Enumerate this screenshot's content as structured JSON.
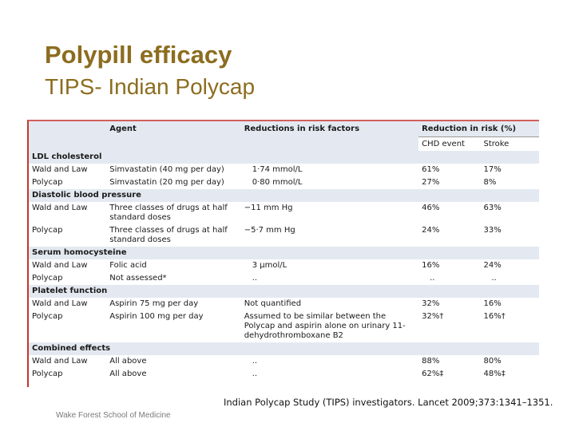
{
  "slide": {
    "title": "Polypill efficacy",
    "subtitle": "TIPS- Indian Polycap",
    "citation": "Indian Polycap Study (TIPS) investigators. Lancet 2009;373:1341–1351.",
    "footer": "Wake Forest School of Medicine"
  },
  "table": {
    "headers": {
      "agent": "Agent",
      "reductions_factors": "Reductions in risk factors",
      "reduction_risk": "Reduction in risk (%)",
      "chd": "CHD event",
      "stroke": "Stroke"
    },
    "sections": [
      {
        "name": "LDL cholesterol",
        "rows": [
          {
            "source": "Wald and Law",
            "agent": "Simvastatin (40 mg per day)",
            "factor": "1·74 mmol/L",
            "chd": "61%",
            "stroke": "17%"
          },
          {
            "source": "Polycap",
            "agent": "Simvastatin (20 mg per day)",
            "factor": "0·80 mmol/L",
            "chd": "27%",
            "stroke": "8%"
          }
        ]
      },
      {
        "name": "Diastolic blood pressure",
        "rows": [
          {
            "source": "Wald and Law",
            "agent": "Three classes of drugs at half standard doses",
            "factor": "−11 mm Hg",
            "chd": "46%",
            "stroke": "63%"
          },
          {
            "source": "Polycap",
            "agent": "Three classes of drugs at half standard doses",
            "factor": "−5·7 mm Hg",
            "chd": "24%",
            "stroke": "33%"
          }
        ]
      },
      {
        "name": "Serum homocysteine",
        "rows": [
          {
            "source": "Wald and Law",
            "agent": "Folic acid",
            "factor": "3 μmol/L",
            "chd": "16%",
            "stroke": "24%"
          },
          {
            "source": "Polycap",
            "agent": "Not assessed*",
            "factor": "..",
            "chd": "..",
            "stroke": ".."
          }
        ]
      },
      {
        "name": "Platelet function",
        "rows": [
          {
            "source": "Wald and Law",
            "agent": "Aspirin 75 mg per day",
            "factor": "Not quantified",
            "chd": "32%",
            "stroke": "16%"
          },
          {
            "source": "Polycap",
            "agent": "Aspirin 100 mg per day",
            "factor": "Assumed to be similar between the Polycap and aspirin alone on urinary 11-dehydrothromboxane B2",
            "chd": "32%†",
            "stroke": "16%†"
          }
        ]
      },
      {
        "name": "Combined effects",
        "rows": [
          {
            "source": "Wald and Law",
            "agent": "All above",
            "factor": "..",
            "chd": "88%",
            "stroke": "80%"
          },
          {
            "source": "Polycap",
            "agent": "All above",
            "factor": "..",
            "chd": "62%‡",
            "stroke": "48%‡"
          }
        ]
      }
    ]
  }
}
